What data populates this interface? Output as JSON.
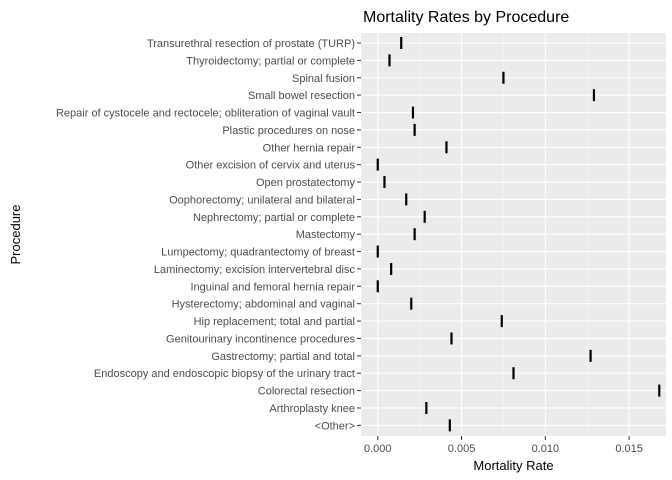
{
  "chart_data": {
    "type": "scatter",
    "title": "Mortality Rates by Procedure",
    "xlabel": "Mortality Rate",
    "ylabel": "Procedure",
    "xlim": [
      -0.001,
      0.0172
    ],
    "x_ticks": [
      0,
      0.005,
      0.01,
      0.015
    ],
    "x_tick_labels": [
      "0.000",
      "0.005",
      "0.010",
      "0.015"
    ],
    "grid": true,
    "categories": [
      "Transurethral resection of prostate (TURP)",
      "Thyroidectomy; partial or complete",
      "Spinal fusion",
      "Small bowel resection",
      "Repair of cystocele and rectocele; obliteration of vaginal vault",
      "Plastic procedures on nose",
      "Other hernia repair",
      "Other excision of cervix and uterus",
      "Open prostatectomy",
      "Oophorectomy; unilateral and bilateral",
      "Nephrectomy; partial or complete",
      "Mastectomy",
      "Lumpectomy; quadrantectomy of breast",
      "Laminectomy; excision intervertebral disc",
      "Inguinal and femoral hernia repair",
      "Hysterectomy; abdominal and vaginal",
      "Hip replacement; total and partial",
      "Genitourinary incontinence procedures",
      "Gastrectomy; partial and total",
      "Endoscopy and endoscopic biopsy of the urinary tract",
      "Colorectal resection",
      "Arthroplasty knee",
      "<Other>"
    ],
    "values": [
      0.0014,
      0.0007,
      0.0075,
      0.0129,
      0.0021,
      0.0022,
      0.0041,
      0.0,
      0.0004,
      0.0017,
      0.0028,
      0.0022,
      0.0,
      0.0008,
      0.0,
      0.002,
      0.0074,
      0.0044,
      0.0127,
      0.0081,
      0.0168,
      0.0029,
      0.0043
    ],
    "colors": {
      "panel": "#ebebeb",
      "grid_major": "#ffffff",
      "grid_minor": "#f5f5f5",
      "mark": "#000000"
    }
  }
}
